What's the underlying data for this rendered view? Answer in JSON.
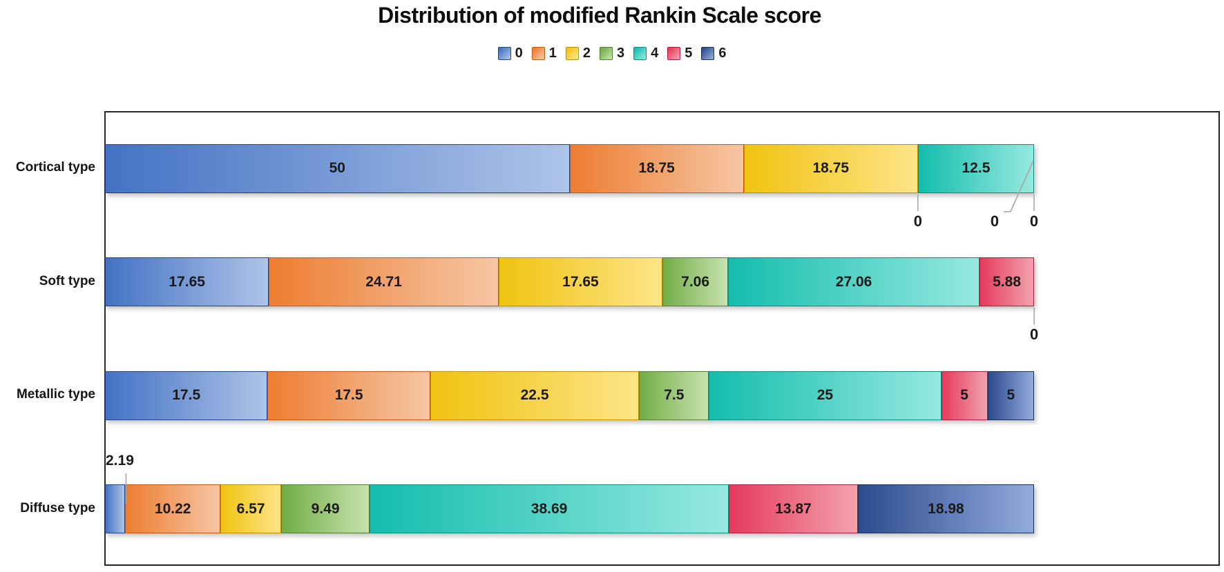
{
  "title": "Distribution of modified Rankin Scale score",
  "chart_data": {
    "type": "bar",
    "orientation": "horizontal",
    "stacked": true,
    "units": "percent",
    "title": "Distribution of modified Rankin Scale score",
    "categories": [
      "Cortical type",
      "Soft type",
      "Metallic type",
      "Diffuse type"
    ],
    "series": [
      {
        "name": "0",
        "values": [
          50,
          17.65,
          17.5,
          2.19
        ]
      },
      {
        "name": "1",
        "values": [
          18.75,
          24.71,
          17.5,
          10.22
        ]
      },
      {
        "name": "2",
        "values": [
          18.75,
          17.65,
          22.5,
          6.57
        ]
      },
      {
        "name": "3",
        "values": [
          0,
          7.06,
          7.5,
          9.49
        ]
      },
      {
        "name": "4",
        "values": [
          12.5,
          27.06,
          25,
          38.69
        ]
      },
      {
        "name": "5",
        "values": [
          0,
          5.88,
          5,
          13.87
        ]
      },
      {
        "name": "6",
        "values": [
          0,
          0,
          5,
          18.98
        ]
      }
    ],
    "value_axis_max_pct": 120,
    "legend_position": "top",
    "gridlines": false,
    "zero_values_labeled_outside": true,
    "small_segment_labeled_above": "2.19"
  },
  "legend": {
    "items": [
      {
        "label": "0",
        "base": "#4472c4",
        "light": "#aec4e8",
        "border": "#24427e"
      },
      {
        "label": "1",
        "base": "#ed7d31",
        "light": "#f6c6a4",
        "border": "#c55a11"
      },
      {
        "label": "2",
        "base": "#f0c310",
        "light": "#fde588",
        "border": "#bf9000"
      },
      {
        "label": "3",
        "base": "#71ad47",
        "light": "#c8e2ae",
        "border": "#507e32"
      },
      {
        "label": "4",
        "base": "#14bdae",
        "light": "#96e9df",
        "border": "#0c8d81"
      },
      {
        "label": "5",
        "base": "#e63a5c",
        "light": "#f2a2ad",
        "border": "#a91e3e"
      },
      {
        "label": "6",
        "base": "#2d4b8e",
        "light": "#92abdc",
        "border": "#1b2f59"
      }
    ]
  },
  "style": {
    "leader_line_color": "#a6a6a6",
    "frame_border_color": "#262626",
    "label_color": "#1a1a1a"
  }
}
